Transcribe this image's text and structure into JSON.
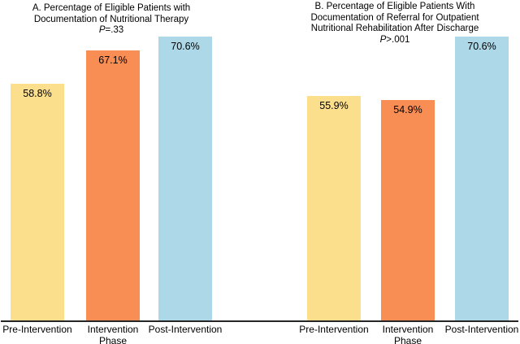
{
  "figure": {
    "background": "#ffffff"
  },
  "colors": {
    "pre_intervention": "#FCDF8D",
    "intervention_phase": "#F98E55",
    "post_intervention": "#ACD8E8",
    "axis_line": "#262626",
    "text": "#000000"
  },
  "chart_data": [
    {
      "type": "bar",
      "panel_label": "A",
      "title_lines": [
        "A. Percentage of Eligible Patients with",
        "Documentation of Nutritional Therapy"
      ],
      "p_value": "P=.33",
      "categories": [
        "Pre-Intervention",
        "Intervention\nPhase",
        "Post-Intervention"
      ],
      "values": [
        58.8,
        67.1,
        70.6
      ],
      "value_labels": [
        "58.8%",
        "67.1%",
        "70.6%"
      ],
      "series_colors_ref": [
        "pre_intervention",
        "intervention_phase",
        "post_intervention"
      ],
      "ylim": [
        0,
        80
      ],
      "xlabel": "",
      "ylabel": "",
      "grid": false,
      "legend": "none"
    },
    {
      "type": "bar",
      "panel_label": "B",
      "title_lines": [
        "B. Percentage of Eligible Patients With",
        "Documentation of Referral for Outpatient",
        "Nutritional Rehabilitation After Discharge"
      ],
      "p_value": "P>.001",
      "categories": [
        "Pre-Intervention",
        "Intervention\nPhase",
        "Post-Intervention"
      ],
      "values": [
        55.9,
        54.9,
        70.6
      ],
      "value_labels": [
        "55.9%",
        "54.9%",
        "70.6%"
      ],
      "series_colors_ref": [
        "pre_intervention",
        "intervention_phase",
        "post_intervention"
      ],
      "ylim": [
        0,
        80
      ],
      "xlabel": "",
      "ylabel": "",
      "grid": false,
      "legend": "none"
    }
  ]
}
